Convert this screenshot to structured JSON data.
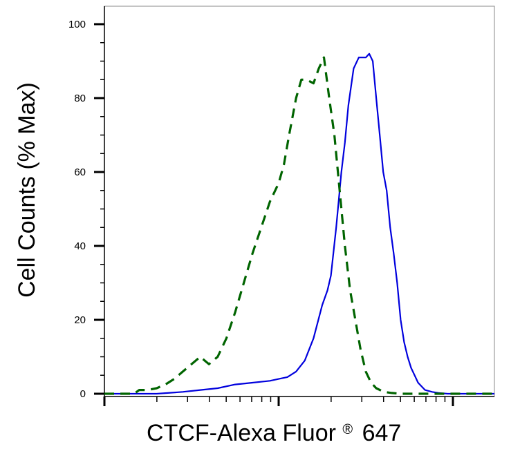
{
  "chart_data": {
    "type": "line",
    "title": "",
    "xlabel": "CTCF-Alexa Fluor",
    "xlabel_registered": "®",
    "xlabel_suffix": "647",
    "ylabel": "Cell Counts (% Max)",
    "x_scale": "log",
    "xlim": [
      0.0,
      2.25
    ],
    "ylim": [
      0,
      105
    ],
    "yticks": [
      0,
      20,
      40,
      60,
      80,
      100
    ],
    "ytick_labels": [
      "0",
      "20",
      "40",
      "60",
      "80",
      "100"
    ],
    "x_major_decades": [
      0,
      1,
      2
    ],
    "grid": false,
    "legend": "none",
    "series": [
      {
        "color": "#0000dd",
        "style": "solid",
        "x": [
          -0.1,
          0.17,
          0.3,
          0.45,
          0.55,
          0.65,
          0.75,
          0.85,
          0.95,
          1.0,
          1.05,
          1.1,
          1.15,
          1.2,
          1.25,
          1.28,
          1.3,
          1.33,
          1.36,
          1.38,
          1.4,
          1.43,
          1.46,
          1.48,
          1.5,
          1.52,
          1.54,
          1.56,
          1.58,
          1.6,
          1.62,
          1.64,
          1.66,
          1.68,
          1.7,
          1.72,
          1.74,
          1.76,
          1.78,
          1.8,
          1.82,
          1.84,
          1.88,
          1.92,
          1.97,
          2.05,
          2.25
        ],
        "y": [
          0,
          0,
          0,
          0.5,
          1,
          1.5,
          2.5,
          3,
          3.5,
          4,
          4.5,
          6,
          9,
          15,
          24,
          28,
          32,
          45,
          60,
          68,
          78,
          88,
          91,
          91,
          91,
          92,
          90,
          80,
          70,
          60,
          55,
          45,
          38,
          30,
          20,
          14,
          10,
          7,
          5,
          3,
          2,
          1,
          0.5,
          0.2,
          0,
          0,
          0
        ]
      },
      {
        "color": "#006400",
        "style": "dashed",
        "x": [
          -0.1,
          0.17,
          0.2,
          0.25,
          0.3,
          0.35,
          0.4,
          0.45,
          0.5,
          0.55,
          0.6,
          0.65,
          0.7,
          0.75,
          0.8,
          0.85,
          0.9,
          0.95,
          1.0,
          1.03,
          1.06,
          1.1,
          1.13,
          1.16,
          1.2,
          1.23,
          1.26,
          1.29,
          1.32,
          1.35,
          1.38,
          1.41,
          1.44,
          1.47,
          1.5,
          1.53,
          1.56,
          1.59,
          1.62,
          1.65,
          1.7,
          1.75,
          2.25
        ],
        "y": [
          0,
          0,
          1,
          1,
          1.5,
          2.5,
          4,
          6,
          8,
          10,
          8,
          10,
          15,
          22,
          30,
          38,
          45,
          52,
          57,
          62,
          70,
          80,
          85,
          85,
          84,
          88,
          91,
          80,
          70,
          55,
          40,
          28,
          20,
          12,
          6,
          3,
          1.5,
          0.8,
          0.4,
          0.2,
          0,
          0,
          0
        ]
      }
    ]
  }
}
